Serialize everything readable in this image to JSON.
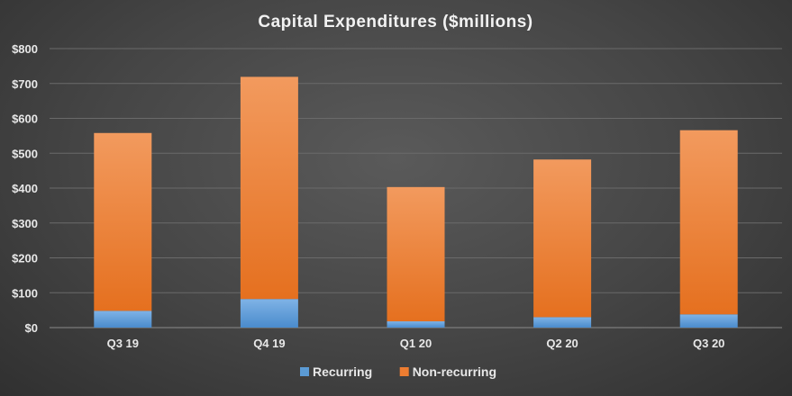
{
  "chart_data": {
    "type": "bar",
    "stacked": true,
    "title": "Capital  Expenditures  ($millions)",
    "xlabel": "",
    "ylabel": "",
    "categories": [
      "Q3 19",
      "Q4 19",
      "Q1 20",
      "Q2 20",
      "Q3 20"
    ],
    "series": [
      {
        "name": "Recurring",
        "color": "#5b9bd5",
        "values": [
          48,
          82,
          18,
          30,
          38
        ]
      },
      {
        "name": "Non-recurring",
        "color": "#ed7d31",
        "values": [
          510,
          637,
          385,
          452,
          528
        ]
      }
    ],
    "ylim": [
      0,
      800
    ],
    "yticks": [
      0,
      100,
      200,
      300,
      400,
      500,
      600,
      700,
      800
    ],
    "ytick_labels": [
      "$0",
      "$100",
      "$200",
      "$300",
      "$400",
      "$500",
      "$600",
      "$700",
      "$800"
    ],
    "grid": true,
    "legend_position": "bottom"
  }
}
